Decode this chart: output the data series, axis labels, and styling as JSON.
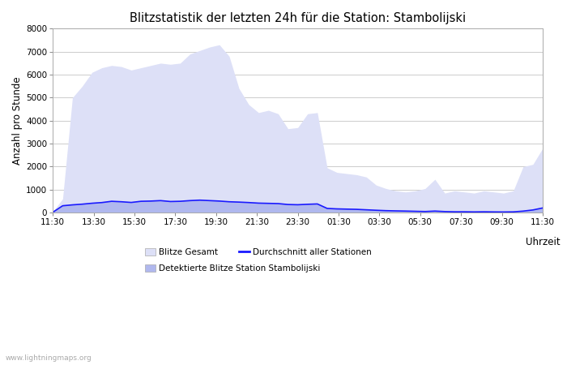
{
  "title": "Blitzstatistik der letzten 24h für die Station: Stambolijski",
  "xlabel": "Uhrzeit",
  "ylabel": "Anzahl pro Stunde",
  "ylim": [
    0,
    8000
  ],
  "yticks": [
    0,
    1000,
    2000,
    3000,
    4000,
    5000,
    6000,
    7000,
    8000
  ],
  "xtick_labels": [
    "11:30",
    "13:30",
    "15:30",
    "17:30",
    "19:30",
    "21:30",
    "23:30",
    "01:30",
    "03:30",
    "05:30",
    "07:30",
    "09:30",
    "11:30"
  ],
  "background_color": "#ffffff",
  "plot_bg_color": "#ffffff",
  "grid_color": "#cccccc",
  "fill_gesamt_color": "#dde0f7",
  "fill_detektiert_color": "#b0b8ee",
  "line_color": "#1a1aff",
  "watermark": "www.lightningmaps.org",
  "legend_labels": [
    "Blitze Gesamt",
    "Durchschnitt aller Stationen",
    "Detektierte Blitze Station Stambolijski"
  ],
  "gesamt": [
    50,
    600,
    5000,
    5500,
    6100,
    6300,
    6400,
    6350,
    6200,
    6300,
    6400,
    6500,
    6450,
    6500,
    6900,
    7050,
    7200,
    7300,
    6800,
    5400,
    4700,
    4350,
    4450,
    4300,
    3650,
    3700,
    4300,
    4350,
    1950,
    1750,
    1700,
    1650,
    1550,
    1200,
    1050,
    950,
    900,
    950,
    1050,
    1450,
    850,
    950,
    900,
    850,
    950,
    900,
    850,
    950,
    2000,
    2100,
    2800
  ],
  "detektiert": [
    30,
    350,
    350,
    380,
    420,
    450,
    510,
    490,
    460,
    510,
    520,
    540,
    500,
    510,
    540,
    560,
    540,
    520,
    490,
    475,
    455,
    430,
    420,
    410,
    370,
    360,
    380,
    395,
    195,
    175,
    165,
    155,
    135,
    115,
    95,
    85,
    78,
    68,
    58,
    78,
    55,
    45,
    45,
    40,
    45,
    40,
    38,
    42,
    75,
    125,
    215
  ],
  "avg": [
    20,
    300,
    340,
    370,
    410,
    440,
    495,
    475,
    445,
    495,
    505,
    525,
    485,
    495,
    525,
    545,
    525,
    505,
    475,
    460,
    440,
    415,
    405,
    395,
    355,
    345,
    365,
    380,
    185,
    165,
    155,
    145,
    125,
    105,
    88,
    78,
    70,
    60,
    50,
    70,
    48,
    38,
    38,
    33,
    38,
    33,
    30,
    35,
    68,
    118,
    205
  ]
}
